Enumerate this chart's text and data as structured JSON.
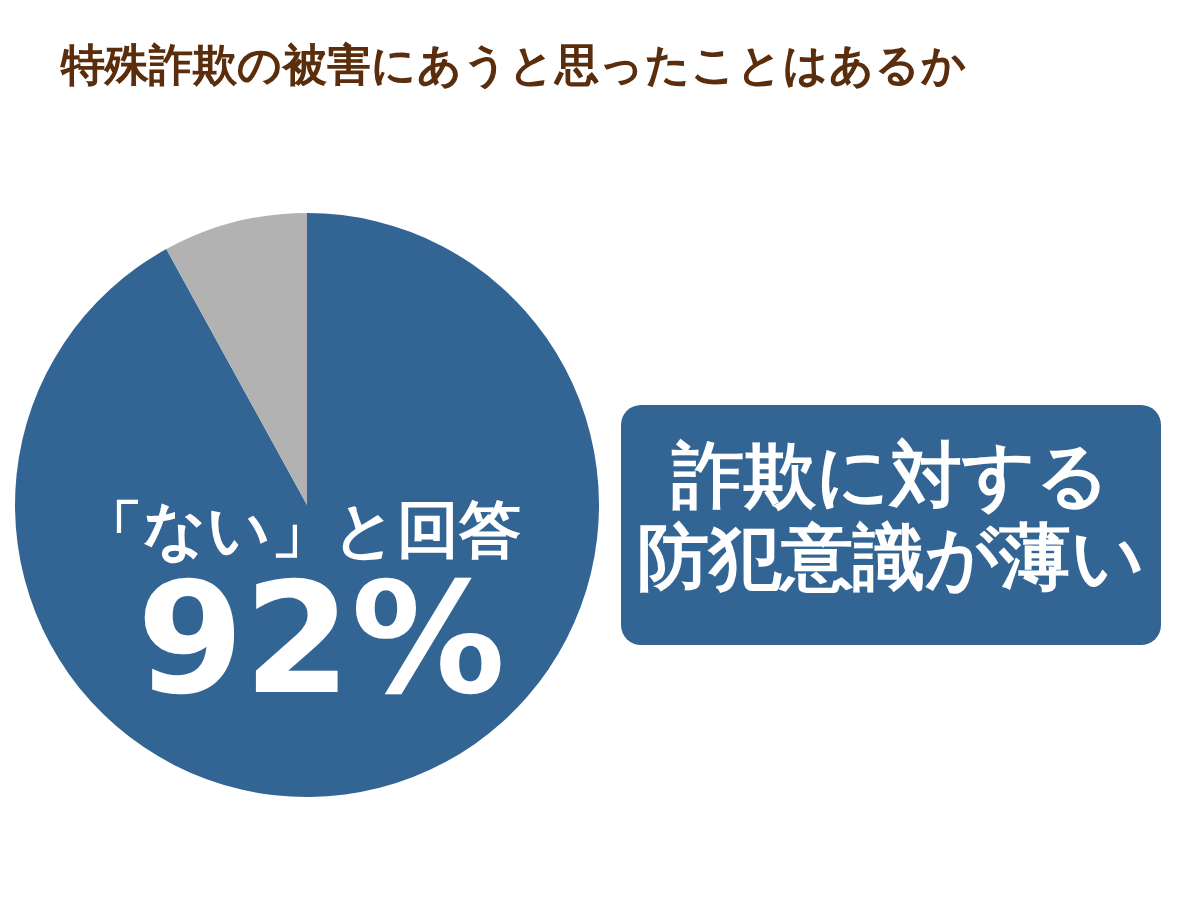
{
  "chart_data": {
    "type": "pie",
    "title": "特殊詐欺の被害にあうと思ったことはあるか",
    "categories": [
      "「ない」と回答",
      null
    ],
    "values": [
      92,
      8
    ],
    "colors": [
      "#336594",
      "#b2b2b2"
    ],
    "value_labels": [
      "92%",
      null
    ],
    "annotations": [
      "詐欺に対する",
      "防犯意識が薄い"
    ]
  }
}
